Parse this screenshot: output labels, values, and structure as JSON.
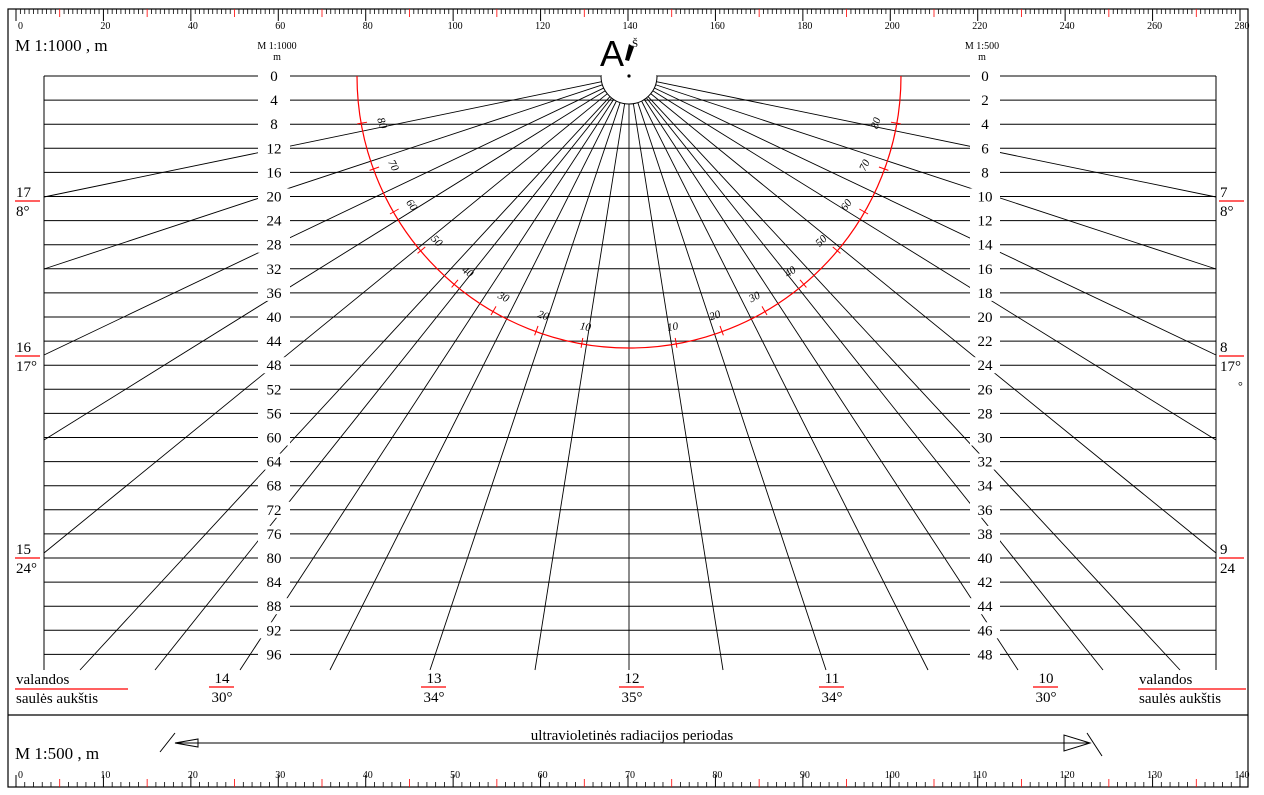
{
  "top_ruler": {
    "labels": [
      "0",
      "20",
      "40",
      "60",
      "80",
      "100",
      "120",
      "140",
      "160",
      "180",
      "200",
      "220",
      "240",
      "260",
      "280"
    ]
  },
  "bottom_ruler": {
    "labels": [
      "0",
      "10",
      "20",
      "30",
      "40",
      "50",
      "60",
      "70",
      "80",
      "90",
      "100",
      "110",
      "120",
      "130",
      "140"
    ]
  },
  "header": {
    "scale_main": "M 1:1000 , m",
    "letter": "A",
    "north_label": "Š",
    "left_scale_title": "M 1:1000",
    "left_scale_unit": "m",
    "right_scale_title": "M 1:500",
    "right_scale_unit": "m"
  },
  "left_scale": [
    "0",
    "4",
    "8",
    "12",
    "16",
    "20",
    "24",
    "28",
    "32",
    "36",
    "40",
    "44",
    "48",
    "52",
    "56",
    "60",
    "64",
    "68",
    "72",
    "76",
    "80",
    "84",
    "88",
    "92",
    "96"
  ],
  "right_scale": [
    "0",
    "2",
    "4",
    "6",
    "8",
    "10",
    "12",
    "14",
    "16",
    "18",
    "20",
    "22",
    "24",
    "26",
    "28",
    "30",
    "32",
    "34",
    "36",
    "38",
    "40",
    "42",
    "44",
    "46",
    "48"
  ],
  "arc_labels_left": [
    "80",
    "70",
    "60",
    "50",
    "40",
    "30",
    "20",
    "10"
  ],
  "arc_labels_right": [
    "80",
    "70",
    "60",
    "50",
    "40",
    "30",
    "20",
    "10"
  ],
  "side_fractions_left": [
    {
      "hour": "17",
      "alt": "8°"
    },
    {
      "hour": "16",
      "alt": "17°"
    },
    {
      "hour": "15",
      "alt": "24°"
    }
  ],
  "side_fractions_right": [
    {
      "hour": "7",
      "alt": "8°"
    },
    {
      "hour": "8",
      "alt": "17°"
    },
    {
      "hour": "9",
      "alt": "24"
    }
  ],
  "right_stray_mark": "°",
  "bottom_fractions": [
    {
      "hour": "14",
      "alt": "30°"
    },
    {
      "hour": "13",
      "alt": "34°"
    },
    {
      "hour": "12",
      "alt": "35°"
    },
    {
      "hour": "11",
      "alt": "34°"
    },
    {
      "hour": "10",
      "alt": "30°"
    }
  ],
  "legend": {
    "top": "valandos",
    "bottom": "saulės aukštis"
  },
  "footer": {
    "scale": "M 1:500 , m",
    "uv_label": "ultravioletinės radiacijos periodas"
  },
  "colors": {
    "ink": "#000000",
    "accent": "#ff0000",
    "paper": "#ffffff"
  }
}
